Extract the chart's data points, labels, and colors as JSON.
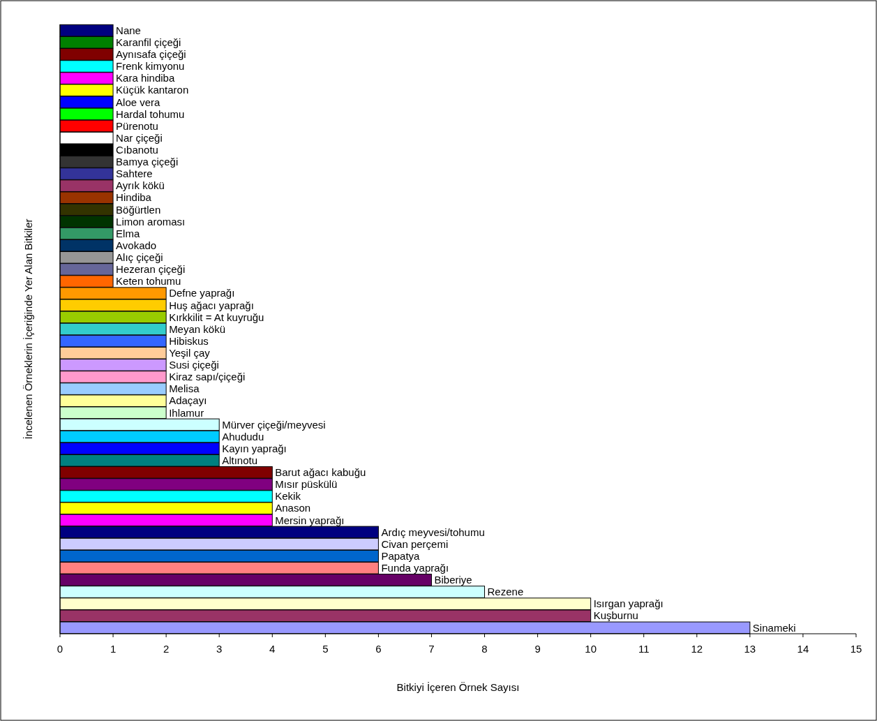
{
  "chart_data": {
    "type": "bar",
    "orientation": "horizontal",
    "xlabel": "Bitkiyi İçeren Örnek Sayısı",
    "ylabel": "İncelenen Örneklerin İçeriğinde Yer Alan Bitkiler",
    "categories": [
      "Nane",
      "Karanfil çiçeği",
      "Aynısafa çiçeği",
      "Frenk kimyonu",
      "Kara hindiba",
      "Küçük kantaron",
      "Aloe vera",
      "Hardal tohumu",
      "Pürenotu",
      "Nar çiçeği",
      "Cıbanotu",
      "Bamya çiçeği",
      "Sahtere",
      "Ayrık kökü",
      "Hindiba",
      "Böğürtlen",
      "Limon aroması",
      "Elma",
      "Avokado",
      "Alıç çiçeği",
      "Hezeran çiçeği",
      "Keten tohumu",
      "Defne yaprağı",
      "Huş ağacı yaprağı",
      "Kırkkilit = At kuyruğu",
      "Meyan kökü",
      "Hibiskus",
      "Yeşil çay",
      "Susi çiçeği",
      "Kiraz sapı/çiçeği",
      "Melisa",
      "Adaçayı",
      "Ihlamur",
      "Mürver çiçeği/meyvesi",
      "Ahududu",
      "Kayın yaprağı",
      "Altınotu",
      "Barut ağacı kabuğu",
      "Mısır püskülü",
      "Kekik",
      "Anason",
      "Mersin yaprağı",
      "Ardıç meyvesi/tohumu",
      "Civan perçemi",
      "Papatya",
      "Funda yaprağı",
      "Biberiye",
      "Rezene",
      "Isırgan yaprağı",
      "Kuşburnu",
      "Sinameki"
    ],
    "values": [
      1,
      1,
      1,
      1,
      1,
      1,
      1,
      1,
      1,
      1,
      1,
      1,
      1,
      1,
      1,
      1,
      1,
      1,
      1,
      1,
      1,
      1,
      2,
      2,
      2,
      2,
      2,
      2,
      2,
      2,
      2,
      2,
      2,
      3,
      3,
      3,
      3,
      4,
      4,
      4,
      4,
      4,
      6,
      6,
      6,
      6,
      7,
      8,
      10,
      10,
      13
    ],
    "colors": [
      "#000080",
      "#008000",
      "#800000",
      "#00ffff",
      "#ff00ff",
      "#ffff00",
      "#0000ff",
      "#00ff00",
      "#ff0000",
      "#ffffff",
      "#000000",
      "#333333",
      "#333399",
      "#993366",
      "#993300",
      "#333300",
      "#003300",
      "#339966",
      "#003366",
      "#969696",
      "#666699",
      "#ff6600",
      "#ff9900",
      "#ffcc00",
      "#99cc00",
      "#33cccc",
      "#3366ff",
      "#ffcc99",
      "#cc99ff",
      "#ff99cc",
      "#99ccff",
      "#ffff99",
      "#ccffcc",
      "#ccffff",
      "#00ccff",
      "#0000ff",
      "#008080",
      "#800000",
      "#800080",
      "#00ffff",
      "#ffff00",
      "#ff00ff",
      "#000080",
      "#ccccff",
      "#0066cc",
      "#ff8080",
      "#660066",
      "#ccffff",
      "#ffffcc",
      "#993366",
      "#9999ff"
    ],
    "xlim": [
      0,
      15
    ],
    "xticks": [
      0,
      1,
      2,
      3,
      4,
      5,
      6,
      7,
      8,
      9,
      10,
      11,
      12,
      13,
      14,
      15
    ],
    "tick_labels": "x",
    "grid": false
  }
}
